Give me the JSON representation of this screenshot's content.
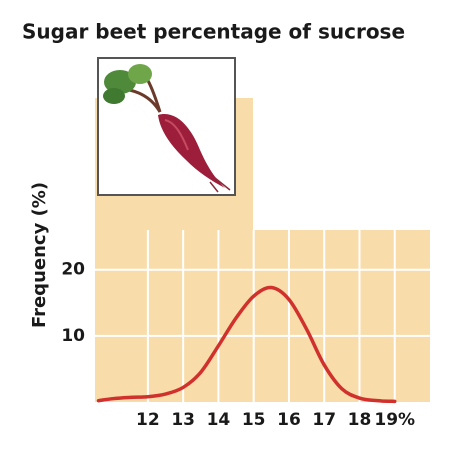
{
  "chart_data": {
    "type": "line",
    "title": "Sugar beet percentage of sucrose",
    "y_label": "Frequency (%)",
    "x": [
      10.6,
      11,
      11.5,
      12,
      12.5,
      13,
      13.5,
      14,
      14.5,
      15,
      15.5,
      16,
      16.5,
      17,
      17.5,
      18,
      18.5,
      19
    ],
    "values": [
      0.2,
      0.5,
      0.7,
      0.8,
      1.2,
      2.2,
      4.5,
      8.5,
      12.7,
      16,
      17.3,
      15.5,
      11,
      5.6,
      2,
      0.6,
      0.2,
      0.1
    ],
    "color": "#d0312d",
    "xlim": [
      10.5,
      20
    ],
    "xticks": [
      12,
      13,
      14,
      15,
      16,
      17,
      18,
      {
        "value": 19,
        "label": "19%"
      }
    ],
    "ylim": [
      0,
      26
    ],
    "yticks": [
      10,
      20
    ],
    "grid": true
  }
}
